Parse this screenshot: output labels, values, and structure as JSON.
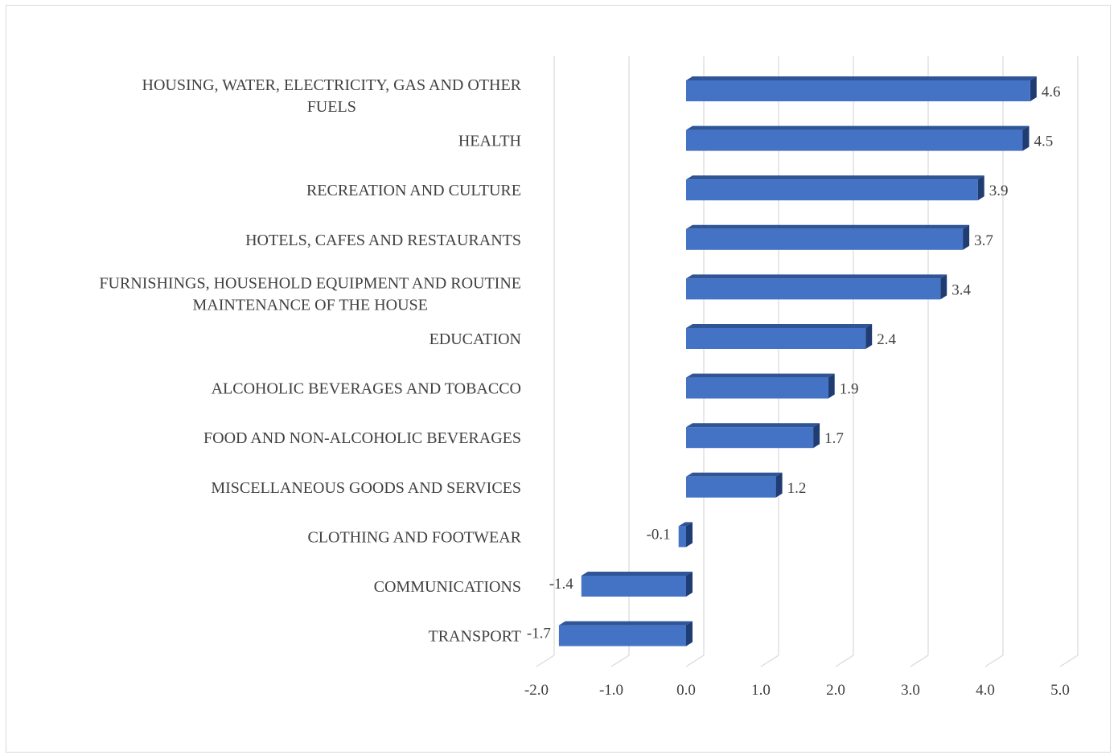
{
  "chart_data": {
    "type": "bar",
    "orientation": "horizontal",
    "style": "3d",
    "title": "",
    "xlabel": "",
    "ylabel": "",
    "categories": [
      "HOUSING, WATER, ELECTRICITY, GAS AND OTHER FUELS",
      "HEALTH",
      "RECREATION AND CULTURE",
      "HOTELS, CAFES AND RESTAURANTS",
      "FURNISHINGS, HOUSEHOLD EQUIPMENT AND ROUTINE MAINTENANCE OF  THE HOUSE",
      "EDUCATION",
      "ALCOHOLIC BEVERAGES AND TOBACCO",
      "FOOD AND NON-ALCOHOLIC BEVERAGES",
      "MISCELLANEOUS GOODS AND SERVICES",
      "CLOTHING AND FOOTWEAR",
      "COMMUNICATIONS",
      "TRANSPORT"
    ],
    "category_lines": [
      [
        "HOUSING, WATER, ELECTRICITY, GAS AND OTHER",
        "FUELS"
      ],
      [
        "HEALTH"
      ],
      [
        "RECREATION AND CULTURE"
      ],
      [
        "HOTELS, CAFES AND RESTAURANTS"
      ],
      [
        "FURNISHINGS, HOUSEHOLD EQUIPMENT AND ROUTINE",
        "MAINTENANCE OF  THE HOUSE"
      ],
      [
        "EDUCATION"
      ],
      [
        "ALCOHOLIC BEVERAGES AND TOBACCO"
      ],
      [
        "FOOD AND NON-ALCOHOLIC BEVERAGES"
      ],
      [
        "MISCELLANEOUS GOODS AND SERVICES"
      ],
      [
        "CLOTHING AND FOOTWEAR"
      ],
      [
        "COMMUNICATIONS"
      ],
      [
        "TRANSPORT"
      ]
    ],
    "values": [
      4.6,
      4.5,
      3.9,
      3.7,
      3.4,
      2.4,
      1.9,
      1.7,
      1.2,
      -0.1,
      -1.4,
      -1.7
    ],
    "data_labels": [
      "4.6",
      "4.5",
      "3.9",
      "3.7",
      "3.4",
      "2.4",
      "1.9",
      "1.7",
      "1.2",
      "-0.1",
      "-1.4",
      "-1.7"
    ],
    "xlim": [
      -2.0,
      5.0
    ],
    "x_ticks": [
      -2,
      -1,
      0,
      1,
      2,
      3,
      4,
      5
    ],
    "x_tick_labels": [
      "-2.0",
      "-1.0",
      "0.0",
      "1.0",
      "2.0",
      "3.0",
      "4.0",
      "5.0"
    ],
    "grid": true,
    "legend": "none",
    "colors": {
      "bar_front": "#4472c4",
      "bar_top": "#2f5597",
      "bar_side": "#1f3c73",
      "grid": "#d9d9d9",
      "text": "#404040"
    }
  }
}
